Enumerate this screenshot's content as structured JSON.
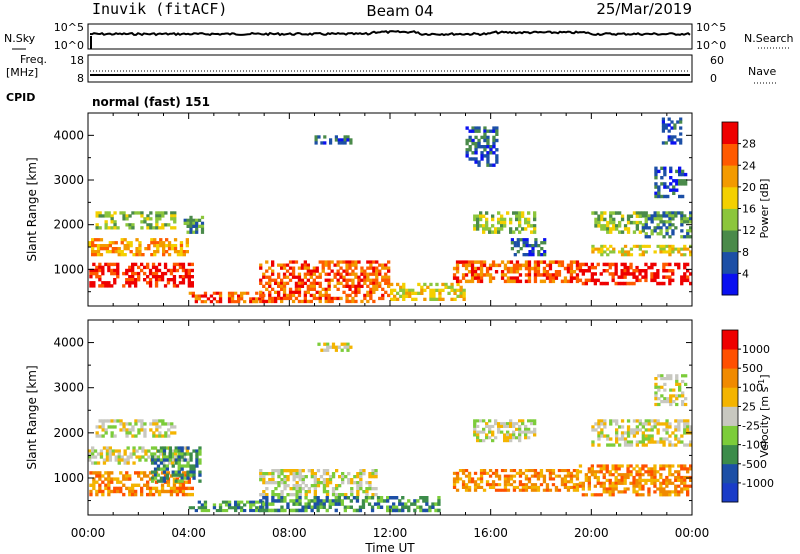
{
  "header": {
    "station": "Inuvik (fitACF)",
    "beam": "Beam 04",
    "date": "25/Mar/2019"
  },
  "nsky_panel": {
    "left_label": "N.Sky",
    "right_label": "N.Search",
    "left_ticks": [
      "10^5",
      "10^0"
    ],
    "right_ticks": [
      "10^5",
      "10^0"
    ]
  },
  "freq_panel": {
    "left_label_1": "Freq.",
    "left_label_2": "[MHz]",
    "right_label": "Nave",
    "left_ticks": [
      "18",
      "8"
    ],
    "right_ticks": [
      "60",
      "0"
    ]
  },
  "cpid": {
    "label": "CPID",
    "value": "normal (fast) 151"
  },
  "chart_data": [
    {
      "type": "heatmap",
      "name": "power",
      "ylabel": "Slant Range [km]",
      "yticks": [
        "1000",
        "2000",
        "3000",
        "4000"
      ],
      "ylim": [
        180,
        4500
      ],
      "colorbar_label": "Power [dB]",
      "colorbar_ticks": [
        "4",
        "8",
        "12",
        "16",
        "20",
        "24",
        "28"
      ],
      "colorbar_colors": [
        "#0a10f0",
        "#1c4fa6",
        "#4a8a4a",
        "#8cc63c",
        "#f4d000",
        "#f39a00",
        "#ff5a00",
        "#ee0000"
      ],
      "regions": [
        {
          "t0": 0.05,
          "t1": 4.2,
          "r0": 600,
          "r1": 1150,
          "level": 7
        },
        {
          "t0": 0.0,
          "t1": 4.0,
          "r0": 1300,
          "r1": 1700,
          "level": 5
        },
        {
          "t0": 0.3,
          "t1": 3.5,
          "r0": 1900,
          "r1": 2300,
          "level": 3
        },
        {
          "t0": 3.8,
          "t1": 4.6,
          "r0": 1800,
          "r1": 2200,
          "level": 2
        },
        {
          "t0": 4.0,
          "t1": 7.0,
          "r0": 250,
          "r1": 500,
          "level": 6
        },
        {
          "t0": 6.8,
          "t1": 12.0,
          "r0": 250,
          "r1": 1200,
          "level": 6
        },
        {
          "t0": 9.0,
          "t1": 10.5,
          "r0": 3800,
          "r1": 4000,
          "level": 1
        },
        {
          "t0": 12.0,
          "t1": 15.0,
          "r0": 300,
          "r1": 700,
          "level": 4
        },
        {
          "t0": 14.5,
          "t1": 19.5,
          "r0": 700,
          "r1": 1200,
          "level": 6
        },
        {
          "t0": 15.3,
          "t1": 17.8,
          "r0": 1800,
          "r1": 2300,
          "level": 3
        },
        {
          "t0": 16.8,
          "t1": 18.2,
          "r0": 1300,
          "r1": 1700,
          "level": 1
        },
        {
          "t0": 15.0,
          "t1": 16.3,
          "r0": 3300,
          "r1": 4200,
          "level": 1
        },
        {
          "t0": 19.5,
          "t1": 24.0,
          "r0": 650,
          "r1": 1150,
          "level": 7
        },
        {
          "t0": 20.0,
          "t1": 24.0,
          "r0": 1300,
          "r1": 1550,
          "level": 4
        },
        {
          "t0": 20.0,
          "t1": 22.0,
          "r0": 1800,
          "r1": 2300,
          "level": 3
        },
        {
          "t0": 22.0,
          "t1": 24.0,
          "r0": 1700,
          "r1": 2300,
          "level": 2
        },
        {
          "t0": 22.5,
          "t1": 23.8,
          "r0": 2600,
          "r1": 3300,
          "level": 1
        },
        {
          "t0": 22.8,
          "t1": 23.6,
          "r0": 3800,
          "r1": 4400,
          "level": 1
        }
      ]
    },
    {
      "type": "heatmap",
      "name": "velocity",
      "ylabel": "Slant Range [km]",
      "yticks": [
        "1000",
        "2000",
        "3000",
        "4000"
      ],
      "ylim": [
        180,
        4500
      ],
      "colorbar_label": "Velocity [m s",
      "colorbar_label_sup": "-1",
      "colorbar_ticks": [
        "1000",
        "500",
        "100",
        "25",
        "-25",
        "-100",
        "-500",
        "-1000"
      ],
      "colorbar_colors": [
        "#1a3cc8",
        "#1c4fa6",
        "#3c8c4a",
        "#7ccc3a",
        "#c8c8c0",
        "#f4b400",
        "#f08a00",
        "#ff5000",
        "#ee0000"
      ],
      "regions": [
        {
          "t0": 0.05,
          "t1": 4.2,
          "r0": 600,
          "r1": 1150,
          "level": 6
        },
        {
          "t0": 0.0,
          "t1": 4.0,
          "r0": 1300,
          "r1": 1700,
          "level": 4
        },
        {
          "t0": 0.3,
          "t1": 3.5,
          "r0": 1900,
          "r1": 2300,
          "level": 4
        },
        {
          "t0": 2.5,
          "t1": 4.5,
          "r0": 900,
          "r1": 1700,
          "level": 2
        },
        {
          "t0": 4.0,
          "t1": 7.0,
          "r0": 250,
          "r1": 500,
          "level": 2
        },
        {
          "t0": 6.8,
          "t1": 11.5,
          "r0": 600,
          "r1": 1200,
          "level": 4
        },
        {
          "t0": 6.8,
          "t1": 14.0,
          "r0": 250,
          "r1": 600,
          "level": 2
        },
        {
          "t0": 9.0,
          "t1": 10.5,
          "r0": 3800,
          "r1": 4000,
          "level": 4
        },
        {
          "t0": 14.5,
          "t1": 19.5,
          "r0": 700,
          "r1": 1200,
          "level": 6
        },
        {
          "t0": 15.3,
          "t1": 17.8,
          "r0": 1800,
          "r1": 2300,
          "level": 4
        },
        {
          "t0": 19.5,
          "t1": 24.0,
          "r0": 600,
          "r1": 1300,
          "level": 6
        },
        {
          "t0": 20.0,
          "t1": 24.0,
          "r0": 1700,
          "r1": 2300,
          "level": 4
        },
        {
          "t0": 22.5,
          "t1": 23.8,
          "r0": 2600,
          "r1": 3300,
          "level": 4
        }
      ]
    }
  ],
  "time_axis": {
    "xlabel": "Time UT",
    "xlim": [
      0,
      24
    ],
    "ticks": [
      {
        "t": 0,
        "label": "00:00"
      },
      {
        "t": 4,
        "label": "04:00"
      },
      {
        "t": 8,
        "label": "08:00"
      },
      {
        "t": 12,
        "label": "12:00"
      },
      {
        "t": 16,
        "label": "16:00"
      },
      {
        "t": 20,
        "label": "20:00"
      },
      {
        "t": 24,
        "label": "00:00"
      }
    ]
  }
}
